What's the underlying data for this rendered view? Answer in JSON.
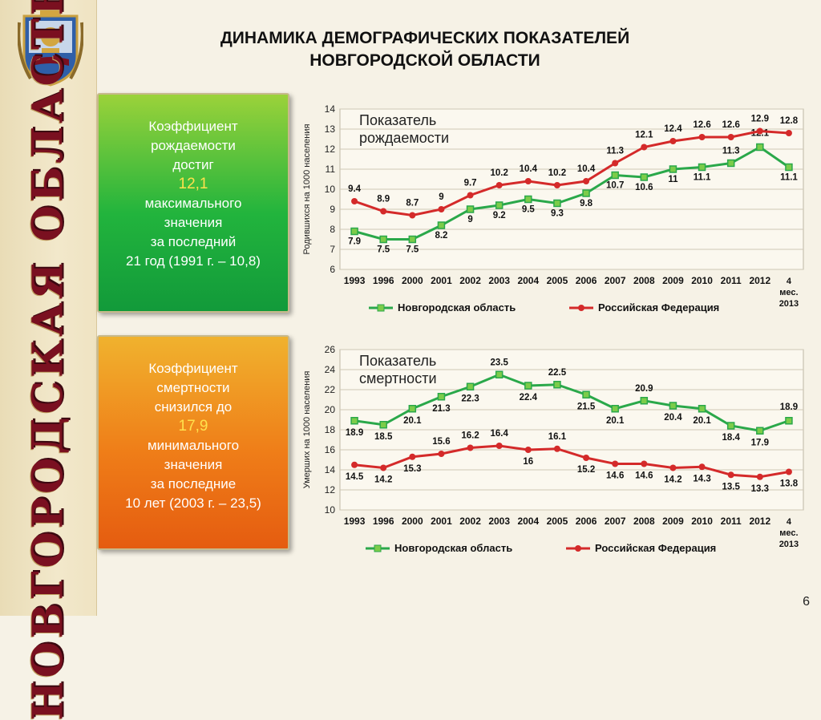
{
  "slide": {
    "title_line1": "ДИНАМИКА ДЕМОГРАФИЧЕСКИХ ПОКАЗАТЕЛЕЙ",
    "title_line2": "НОВГОРОДСКОЙ ОБЛАСТИ",
    "side_title": "НОВГОРОДСКАЯ ОБЛАСТЬ",
    "page_number": "6"
  },
  "birth_card": {
    "line1": "Коэффициент",
    "line2": "рождаемости",
    "line3": "достиг",
    "value": "12,1",
    "line4": "максимального",
    "line5": "значения",
    "line6": "за последний",
    "line7": "21 год (1991 г. – 10,8)"
  },
  "death_card": {
    "line1": "Коэффициент",
    "line2": "смертности",
    "line3": "снизился до",
    "value": "17,9",
    "line4": "минимального",
    "line5": "значения",
    "line6": "за последние",
    "line7": "10 лет (2003 г. – 23,5)"
  },
  "chart_data": [
    {
      "type": "line",
      "title": "Показатель рождаемости",
      "ylabel": "Родившихся на 1000 населения",
      "ylim": [
        6,
        14
      ],
      "categories": [
        "1993",
        "1996",
        "2000",
        "2001",
        "2002",
        "2003",
        "2004",
        "2005",
        "2006",
        "2007",
        "2008",
        "2009",
        "2010",
        "2011",
        "2012",
        "4 мес. 2013"
      ],
      "series": [
        {
          "name": "Новгородская область",
          "color": "#2aa84a",
          "marker": "square",
          "values": [
            7.9,
            7.5,
            7.5,
            8.2,
            9,
            9.2,
            9.5,
            9.3,
            9.8,
            10.7,
            10.6,
            11,
            11.1,
            11.3,
            12.1,
            11.1
          ],
          "labels": [
            "7.9",
            "7.5",
            "7.5",
            "8.2",
            "9",
            "9.2",
            "9.5",
            "9.3",
            "9.8",
            "10.7",
            "10.6",
            "11",
            "11.1",
            "11.3",
            "12.1",
            "11.1"
          ]
        },
        {
          "name": "Российская Федерация",
          "color": "#d42a2a",
          "marker": "circle",
          "values": [
            9.4,
            8.9,
            8.7,
            9,
            9.7,
            10.2,
            10.4,
            10.2,
            10.4,
            11.3,
            12.1,
            12.4,
            12.6,
            12.6,
            12.9,
            12.8
          ],
          "labels": [
            "9.4",
            "8.9",
            "8.7",
            "9",
            "9.7",
            "10.2",
            "10.4",
            "10.2",
            "10.4",
            "11.3",
            "12.1",
            "12.4",
            "12.6",
            "12.6",
            "12.9",
            "12.8"
          ]
        }
      ],
      "legend": "bottom",
      "grid": true
    },
    {
      "type": "line",
      "title": "Показатель смертности",
      "ylabel": "Умерших на 1000 населения",
      "ylim": [
        10,
        26
      ],
      "categories": [
        "1993",
        "1996",
        "2000",
        "2001",
        "2002",
        "2003",
        "2004",
        "2005",
        "2006",
        "2007",
        "2008",
        "2009",
        "2010",
        "2011",
        "2012",
        "4 мес. 2013"
      ],
      "series": [
        {
          "name": "Новгородская область",
          "color": "#2aa84a",
          "marker": "square",
          "values": [
            18.9,
            18.5,
            20.1,
            21.3,
            22.3,
            23.5,
            22.4,
            22.5,
            21.5,
            20.1,
            20.9,
            20.4,
            20.1,
            18.4,
            17.9,
            18.9
          ],
          "labels": [
            "18.9",
            "18.5",
            "20.1",
            "21.3",
            "22.3",
            "23.5",
            "22.4",
            "22.5",
            "21.5",
            "20.1",
            "20.9",
            "20.4",
            "20.1",
            "18.4",
            "17.9",
            "18.9"
          ]
        },
        {
          "name": "Российская Федерация",
          "color": "#d42a2a",
          "marker": "circle",
          "values": [
            14.5,
            14.2,
            15.3,
            15.6,
            16.2,
            16.4,
            16,
            16.1,
            15.2,
            14.6,
            14.6,
            14.2,
            14.3,
            13.5,
            13.3,
            13.8
          ],
          "labels": [
            "14.5",
            "14.2",
            "15.3",
            "15.6",
            "16.2",
            "16.4",
            "16",
            "16.1",
            "15.2",
            "14.6",
            "14.6",
            "14.2",
            "14.3",
            "13.5",
            "13.3",
            "13.8"
          ]
        }
      ],
      "legend": "bottom",
      "grid": true
    }
  ]
}
